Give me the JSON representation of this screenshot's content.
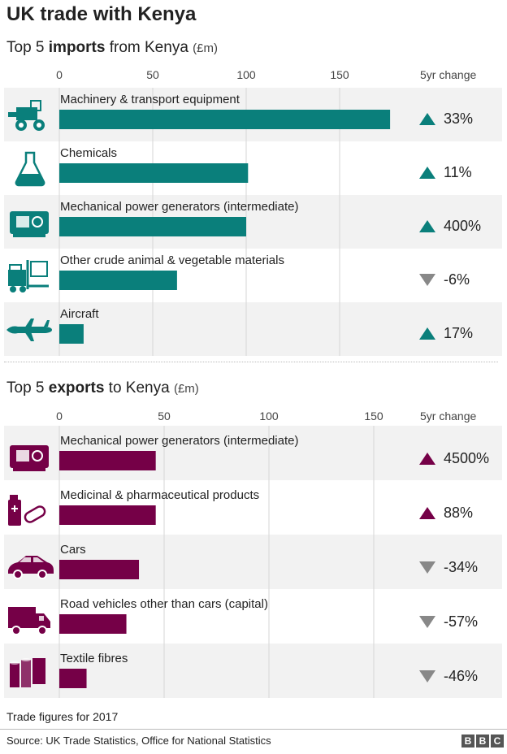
{
  "title": "UK trade with Kenya",
  "imports_heading": {
    "prefix": "Top 5 ",
    "bold": "imports",
    "suffix": " from Kenya ",
    "unit": "(£m)"
  },
  "exports_heading": {
    "prefix": "Top 5 ",
    "bold": "exports",
    "suffix": " to Kenya ",
    "unit": "(£m)"
  },
  "change_header": "5yr change",
  "footnote": "Trade figures for 2017",
  "source": "Source: UK Trade Statistics, Office for National Statistics",
  "logo_letters": [
    "B",
    "B",
    "C"
  ],
  "colors": {
    "imports": "#0a7f7b",
    "exports": "#750047",
    "up_import": "#0a7f7b",
    "up_export": "#750047",
    "down": "#888888",
    "row_bg": "#f2f2f2"
  },
  "chart_data": [
    {
      "type": "bar",
      "orientation": "horizontal",
      "categories": [
        "Machinery & transport equipment",
        "Chemicals",
        "Mechanical power generators (intermediate)",
        "Other crude animal & vegetable materials",
        "Aircraft"
      ],
      "values": [
        177,
        101,
        100,
        63,
        13
      ],
      "changes": [
        "33%",
        "11%",
        "400%",
        "-6%",
        "17%"
      ],
      "change_direction": [
        "up",
        "up",
        "up",
        "down",
        "up"
      ],
      "icons": [
        "tractor-icon",
        "flask-icon",
        "generator-icon",
        "forklift-icon",
        "airplane-icon"
      ],
      "xticks": [
        0,
        50,
        100,
        150
      ],
      "xlim": [
        0,
        190
      ],
      "grid": true
    },
    {
      "type": "bar",
      "orientation": "horizontal",
      "categories": [
        "Mechanical power generators (intermediate)",
        "Medicinal & pharmaceutical products",
        "Cars",
        "Road vehicles other than cars (capital)",
        "Textile fibres"
      ],
      "values": [
        46,
        46,
        38,
        32,
        13
      ],
      "changes": [
        "4500%",
        "88%",
        "-34%",
        "-57%",
        "-46%"
      ],
      "change_direction": [
        "up",
        "up",
        "down",
        "down",
        "down"
      ],
      "icons": [
        "generator-icon",
        "medicine-icon",
        "car-icon",
        "truck-icon",
        "textile-rolls-icon"
      ],
      "xticks": [
        0,
        50,
        100,
        150
      ],
      "xlim": [
        0,
        175
      ],
      "grid": true
    }
  ]
}
